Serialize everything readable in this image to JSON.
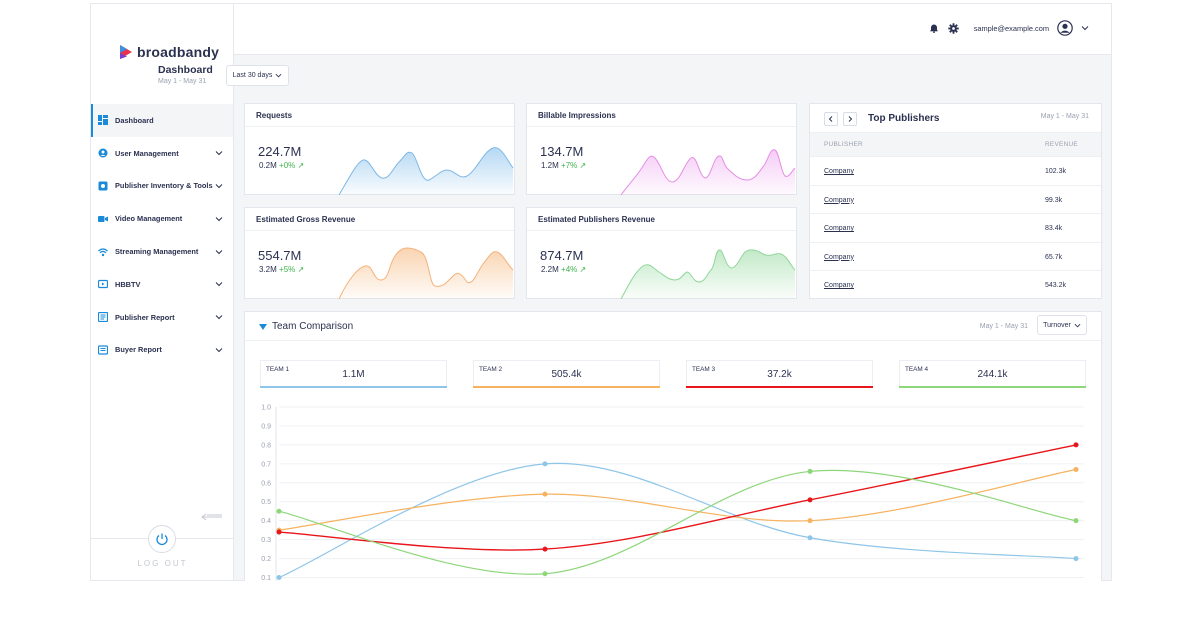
{
  "brand": {
    "name": "broadbandy"
  },
  "sidebar": {
    "items": [
      {
        "label": "Dashboard",
        "icon": "dashboard-icon",
        "active": true,
        "chevron": false
      },
      {
        "label": "User Management",
        "icon": "user-globe-icon",
        "chevron": true
      },
      {
        "label": "Publisher Inventory & Tools",
        "icon": "inventory-icon",
        "chevron": true
      },
      {
        "label": "Video Management",
        "icon": "video-camera-icon",
        "chevron": true
      },
      {
        "label": "Streaming Management",
        "icon": "wifi-icon",
        "chevron": true
      },
      {
        "label": "HBBTV",
        "icon": "tv-icon",
        "chevron": true
      },
      {
        "label": "Publisher Report",
        "icon": "report-icon",
        "chevron": true
      },
      {
        "label": "Buyer Report",
        "icon": "buyer-report-icon",
        "chevron": true
      }
    ],
    "logout_label": "LOG OUT"
  },
  "header": {
    "user_email": "sample@example.com"
  },
  "page": {
    "title": "Dashboard",
    "date_range": "May 1 - May 31",
    "range_button": "Last 30 days"
  },
  "stats": [
    {
      "title": "Requests",
      "value": "224.7M",
      "sub_value": "0.2M",
      "delta": "+0%",
      "color": "#7fb8e6"
    },
    {
      "title": "Billable Impressions",
      "value": "134.7M",
      "sub_value": "1.2M",
      "delta": "+7%",
      "color": "#e48ee6"
    },
    {
      "title": "Estimated Gross Revenue",
      "value": "554.7M",
      "sub_value": "3.2M",
      "delta": "+5%",
      "color": "#f4b27a"
    },
    {
      "title": "Estimated Publishers Revenue",
      "value": "874.7M",
      "sub_value": "2.2M",
      "delta": "+4%",
      "color": "#8fd69a"
    }
  ],
  "top_publishers": {
    "title": "Top Publishers",
    "date_range": "May 1 - May 31",
    "col_publisher": "PUBLISHER",
    "col_revenue": "REVENUE",
    "rows": [
      {
        "name": "Company",
        "revenue": "102.3k"
      },
      {
        "name": "Company",
        "revenue": "99.3k"
      },
      {
        "name": "Company",
        "revenue": "83.4k"
      },
      {
        "name": "Company",
        "revenue": "65.7k"
      },
      {
        "name": "Company",
        "revenue": "543.2k"
      }
    ]
  },
  "team_comparison": {
    "title": "Team Comparison",
    "date_range": "May 1 - May 31",
    "select_value": "Turnover",
    "teams": [
      {
        "name": "TEAM 1",
        "value": "1.1M",
        "color": "#8ec5e8"
      },
      {
        "name": "TEAM 2",
        "value": "505.4k",
        "color": "#f6b25e"
      },
      {
        "name": "TEAM 3",
        "value": "37.2k",
        "color": "#e8151b"
      },
      {
        "name": "TEAM 4",
        "value": "244.1k",
        "color": "#8ed67a"
      }
    ]
  },
  "chart_data": {
    "type": "line",
    "x": [
      1,
      2,
      3,
      4
    ],
    "y_ticks": [
      "0.1",
      "0.2",
      "0.3",
      "0.4",
      "0.5",
      "0.6",
      "0.7",
      "0.8",
      "0.9",
      "1.0"
    ],
    "ylim": [
      0.05,
      1.0
    ],
    "grid": true,
    "series": [
      {
        "name": "TEAM 1",
        "color": "#8ec5e8",
        "values": [
          0.1,
          0.7,
          0.31,
          0.2
        ]
      },
      {
        "name": "TEAM 2",
        "color": "#f6b25e",
        "values": [
          0.35,
          0.54,
          0.4,
          0.67
        ]
      },
      {
        "name": "TEAM 3",
        "color": "#e8151b",
        "values": [
          0.34,
          0.25,
          0.51,
          0.8
        ]
      },
      {
        "name": "TEAM 4",
        "color": "#8ed67a",
        "values": [
          0.45,
          0.12,
          0.66,
          0.4
        ]
      }
    ]
  }
}
